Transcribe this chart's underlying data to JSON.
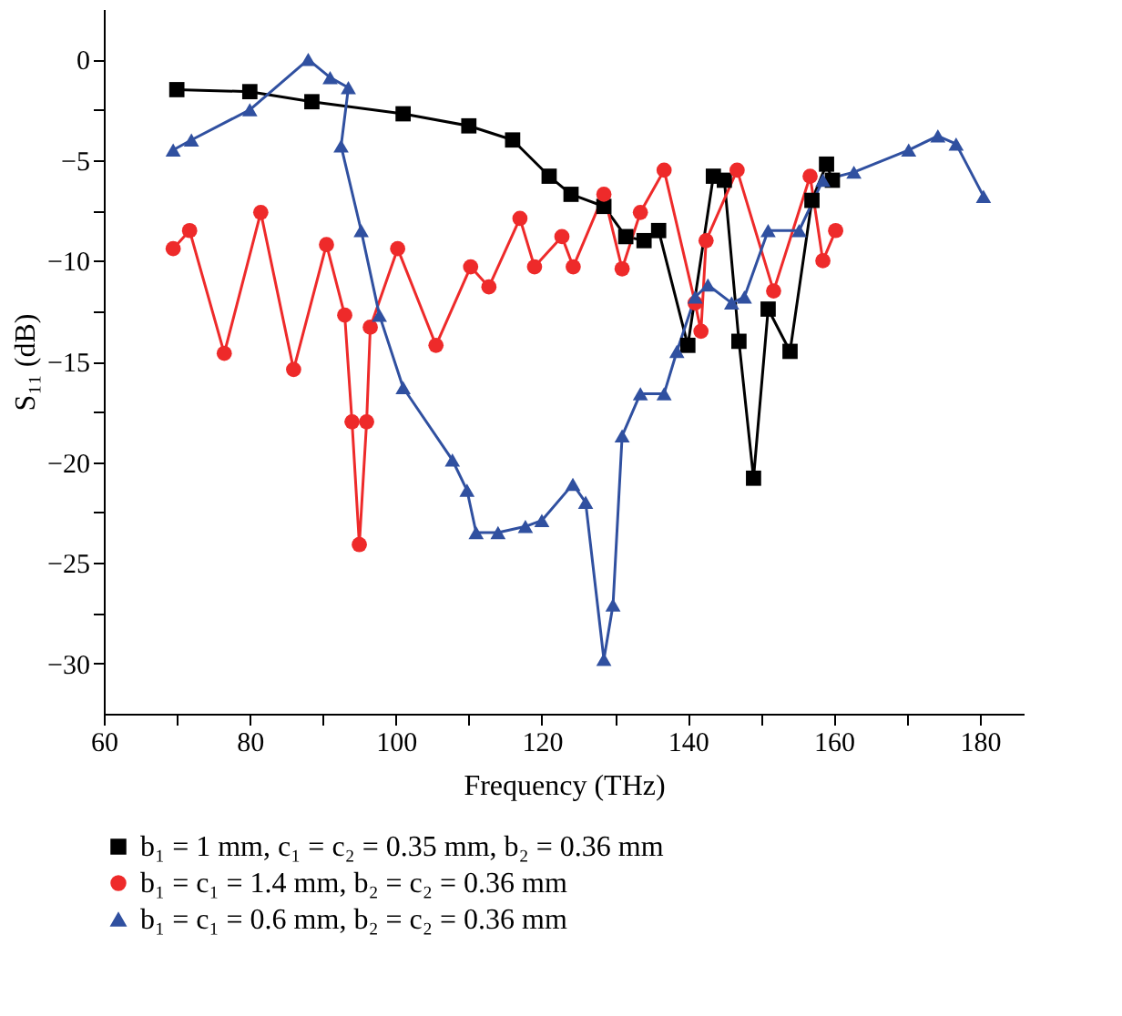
{
  "chart_data": {
    "type": "line",
    "xlabel": "Frequency (THz)",
    "ylabel": "S₁₁ (dB)",
    "xlim": [
      60,
      186
    ],
    "ylim": [
      -32.5,
      2.5
    ],
    "xticks": [
      60,
      {
        "value": 70,
        "label": null
      },
      80,
      {
        "value": 90,
        "label": null
      },
      100,
      {
        "value": 110,
        "label": null
      },
      120,
      {
        "value": 130,
        "label": null
      },
      140,
      {
        "value": 150,
        "label": null
      },
      160,
      {
        "value": 170,
        "label": null
      },
      180
    ],
    "yticks": [
      {
        "value": -30,
        "label": "−30"
      },
      {
        "value": -27.5,
        "label": null
      },
      {
        "value": -25,
        "label": "−25"
      },
      {
        "value": -22.5,
        "label": null
      },
      {
        "value": -20,
        "label": "−20"
      },
      {
        "value": -17.5,
        "label": null
      },
      {
        "value": -15,
        "label": "−15"
      },
      {
        "value": -12.5,
        "label": null
      },
      {
        "value": -10,
        "label": "−10"
      },
      {
        "value": -7.5,
        "label": null
      },
      {
        "value": -5,
        "label": "−5"
      },
      {
        "value": -2.5,
        "label": null
      },
      0
    ],
    "grid": false,
    "legend": "bottom",
    "line_style": "solid",
    "series": [
      {
        "name": "b₁ = 1 mm, c₁ = c₂ = 0.35 mm, b₂ = 0.36 mm",
        "color": "#000000",
        "marker": "square",
        "x": [
          70,
          80,
          88.5,
          101,
          110,
          116,
          121,
          124,
          128.5,
          131.5,
          134,
          136,
          140,
          143.5,
          145,
          147,
          149,
          151,
          154,
          157,
          159,
          159.8
        ],
        "values": [
          -1.5,
          -1.6,
          -2.1,
          -2.7,
          -3.3,
          -4.0,
          -5.8,
          -6.7,
          -7.3,
          -8.8,
          -9,
          -8.5,
          -14.2,
          -5.8,
          -6,
          -14,
          -20.8,
          -12.4,
          -14.5,
          -7,
          -5.2,
          -6
        ]
      },
      {
        "name": "b₁ = c₁ = 1.4 mm, b₂ = c₂ = 0.36 mm",
        "color": "#ee2a2a",
        "marker": "circle",
        "x": [
          69.5,
          71.75,
          76.5,
          81.5,
          86,
          90.5,
          93,
          94,
          95,
          96,
          96.5,
          100.25,
          105.5,
          110.25,
          112.75,
          117,
          119,
          122.75,
          124.3,
          128.5,
          131,
          133.5,
          136.75,
          141,
          141.8,
          142.5,
          146.75,
          151.75,
          156.75,
          158.5,
          160.25
        ],
        "values": [
          -9.4,
          -8.5,
          -14.6,
          -7.6,
          -15.4,
          -9.2,
          -12.7,
          -18,
          -24.1,
          -18,
          -13.3,
          -9.4,
          -14.2,
          -10.3,
          -11.3,
          -7.9,
          -10.3,
          -8.8,
          -10.3,
          -6.7,
          -10.4,
          -7.6,
          -5.5,
          -12.1,
          -13.5,
          -9,
          -5.5,
          -11.5,
          -5.8,
          -10,
          -8.5
        ]
      },
      {
        "name": "b₁ = c₁ = 0.6 mm, b₂ = c₂ = 0.36 mm",
        "color": "#3050a0",
        "marker": "triangle",
        "x": [
          69.5,
          72,
          80,
          88,
          91,
          93.5,
          92.5,
          95.25,
          97.75,
          101,
          107.75,
          109.75,
          111,
          114,
          117.75,
          120,
          124.25,
          126,
          128.5,
          129.75,
          131,
          133.5,
          136.75,
          138.5,
          141,
          142.75,
          146,
          147.75,
          151,
          155.25,
          158.5,
          162.75,
          170.25,
          174.25,
          176.75,
          180.5
        ],
        "values": [
          -4.5,
          -4,
          -2.5,
          0,
          -0.9,
          -1.4,
          -4.3,
          -8.5,
          -12.7,
          -16.3,
          -19.9,
          -21.4,
          -23.5,
          -23.5,
          -23.2,
          -22.9,
          -21.1,
          -22,
          -29.8,
          -27.1,
          -18.7,
          -16.6,
          -16.6,
          -14.5,
          -11.8,
          -11.2,
          -12.1,
          -11.8,
          -8.5,
          -8.5,
          -6,
          -5.6,
          -4.5,
          -3.8,
          -4.2,
          -6.8
        ]
      }
    ]
  }
}
